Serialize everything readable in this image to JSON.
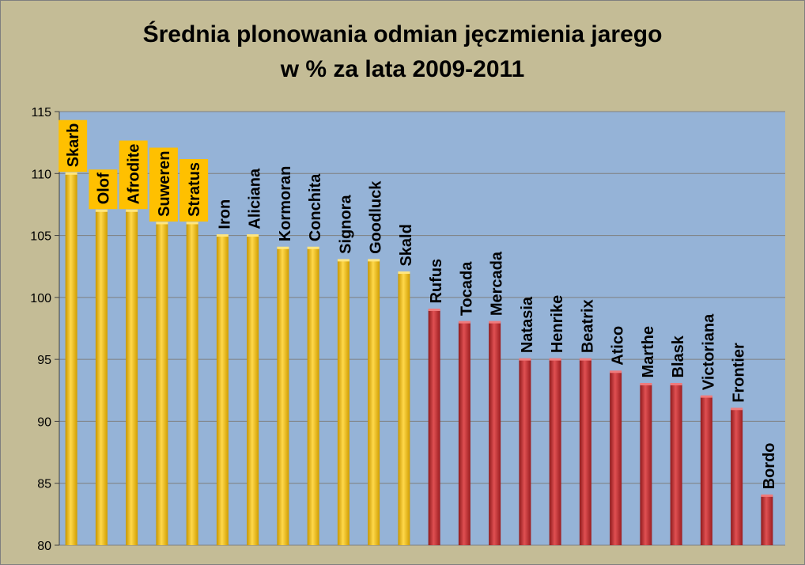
{
  "chart_data": {
    "type": "bar",
    "title": [
      "Średnia plonowania odmian jęczmienia jarego",
      "w % za lata 2009-2011"
    ],
    "xlabel": "",
    "ylabel": "",
    "ylim": [
      80,
      115
    ],
    "yticks": [
      80,
      85,
      90,
      95,
      100,
      105,
      110,
      115
    ],
    "grid": true,
    "legend": "none",
    "categories": [
      "Skarb",
      "Olof",
      "Afrodite",
      "Suweren",
      "Stratus",
      "Iron",
      "Aliciana",
      "Kormoran",
      "Conchita",
      "Signora",
      "Goodluck",
      "Skald",
      "Rufus",
      "Tocada",
      "Mercada",
      "Natasia",
      "Henrike",
      "Beatrix",
      "Atico",
      "Marthe",
      "Blask",
      "Victoriana",
      "Frontier",
      "Bordo"
    ],
    "values": [
      110,
      107,
      107,
      106,
      106,
      105,
      105,
      104,
      104,
      103,
      103,
      102,
      99,
      98,
      98,
      95,
      95,
      95,
      94,
      93,
      93,
      92,
      91,
      84
    ],
    "highlighted": [
      "Skarb",
      "Olof",
      "Afrodite",
      "Suweren",
      "Stratus"
    ],
    "colors": {
      "plot_bg": "#95b3d7",
      "chart_bg": "#c4bc96",
      "bar_above_100": "#f5c000",
      "bar_below_100": "#c0282c",
      "highlight_label_bg": "#ffc000",
      "grid": "#7f7f7f"
    }
  }
}
